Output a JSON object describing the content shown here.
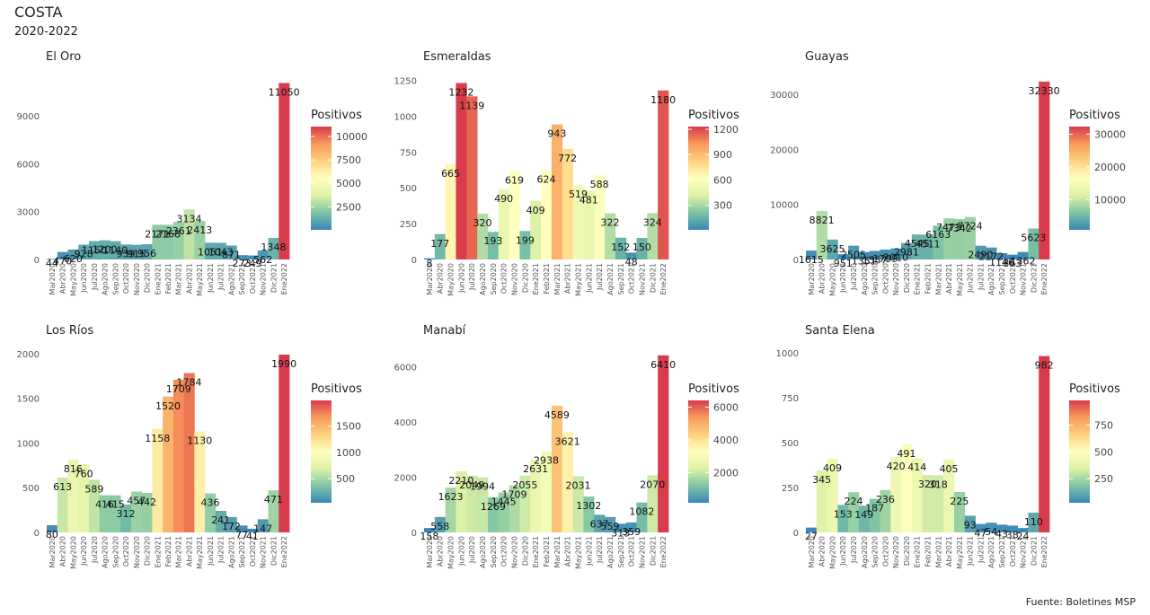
{
  "title": "COSTA",
  "subtitle": "2020-2022",
  "caption": "Fuente: Boletines MSP",
  "legend_title": "Positivos",
  "colorscale": [
    "#3a86b8",
    "#7dc4a4",
    "#dff2a6",
    "#ffffbf",
    "#fdd17f",
    "#f89a5b",
    "#d83b4b"
  ],
  "chart_data": [
    {
      "type": "bar",
      "title": "El Oro",
      "categories": [
        "Mar2020",
        "Abr2020",
        "May2020",
        "Jun2020",
        "Jul2020",
        "Ago2020",
        "Sep2020",
        "Oct2020",
        "Nov2020",
        "Dic2020",
        "Ene2021",
        "Feb2021",
        "Mar2021",
        "Abr2021",
        "May2021",
        "Jun2021",
        "Jul2021",
        "Ago2021",
        "Sep2021",
        "Oct2021",
        "Nov2021",
        "Dic2021",
        "Ene2022"
      ],
      "values": [
        44,
        470,
        620,
        928,
        1150,
        1200,
        1140,
        939,
        915,
        956,
        2171,
        2168,
        2361,
        3134,
        2413,
        1051,
        1043,
        871,
        273,
        249,
        562,
        1348,
        11050
      ],
      "ylim": [
        0,
        11300
      ],
      "yticks": [
        0,
        3000,
        6000,
        9000
      ],
      "legend_ticks": [
        2500,
        5000,
        7500,
        10000
      ]
    },
    {
      "type": "bar",
      "title": "Esmeraldas",
      "categories": [
        "Mar2020",
        "Abr2020",
        "May2020",
        "Jun2020",
        "Jul2020",
        "Ago2020",
        "Sep2020",
        "Oct2020",
        "Nov2020",
        "Dic2020",
        "Ene2021",
        "Feb2021",
        "Mar2021",
        "Abr2021",
        "May2021",
        "Jun2021",
        "Jul2021",
        "Ago2021",
        "Sep2021",
        "Oct2021",
        "Nov2021",
        "Dic2021",
        "Ene2022"
      ],
      "values": [
        8,
        177,
        665,
        1232,
        1139,
        320,
        193,
        490,
        619,
        199,
        409,
        624,
        943,
        772,
        519,
        481,
        588,
        322,
        152,
        48,
        150,
        324,
        1180
      ],
      "ylim": [
        0,
        1260
      ],
      "yticks": [
        0,
        250,
        500,
        750,
        1000,
        1250
      ],
      "legend_ticks": [
        300,
        600,
        900,
        1200
      ]
    },
    {
      "type": "bar",
      "title": "Guayas",
      "categories": [
        "Mar2020",
        "Abr2020",
        "May2020",
        "Jun2020",
        "Jul2020",
        "Ago2020",
        "Sep2020",
        "Oct2020",
        "Nov2020",
        "Dic2020",
        "Ene2021",
        "Feb2021",
        "Mar2021",
        "Abr2021",
        "May2021",
        "Jun2021",
        "Jul2021",
        "Ago2021",
        "Sep2021",
        "Oct2021",
        "Nov2021",
        "Dic2021",
        "Ene2022"
      ],
      "values": [
        1615,
        8821,
        3625,
        951,
        2505,
        1351,
        1557,
        1799,
        2010,
        2981,
        4545,
        4511,
        6163,
        7473,
        7342,
        7724,
        2490,
        2172,
        1146,
        863,
        1362,
        5623,
        32330
      ],
      "ylim": [
        0,
        32800
      ],
      "yticks": [
        0,
        10000,
        20000,
        30000
      ],
      "legend_ticks": [
        10000,
        20000,
        30000
      ]
    },
    {
      "type": "bar",
      "title": "Los Ríos",
      "categories": [
        "Mar2020",
        "Abr2020",
        "May2020",
        "Jun2020",
        "Jul2020",
        "Ago2020",
        "Sep2020",
        "Oct2020",
        "Nov2020",
        "Dic2020",
        "Ene2021",
        "Feb2021",
        "Mar2021",
        "Abr2021",
        "May2021",
        "Jun2021",
        "Jul2021",
        "Ago2021",
        "Sep2021",
        "Oct2021",
        "Nov2021",
        "Dic2021",
        "Ene2022"
      ],
      "values": [
        80,
        613,
        816,
        760,
        589,
        416,
        415,
        312,
        457,
        442,
        1158,
        1520,
        1709,
        1784,
        1130,
        436,
        241,
        172,
        77,
        41,
        147,
        471,
        1990
      ],
      "ylim": [
        0,
        2010
      ],
      "yticks": [
        0,
        500,
        1000,
        1500,
        2000
      ],
      "legend_ticks": [
        500,
        1000,
        1500
      ]
    },
    {
      "type": "bar",
      "title": "Manabí",
      "categories": [
        "Mar2020",
        "Abr2020",
        "May2020",
        "Jun2020",
        "Jul2020",
        "Ago2020",
        "Sep2020",
        "Oct2020",
        "Nov2020",
        "Dic2020",
        "Ene2021",
        "Feb2021",
        "Mar2021",
        "Abr2021",
        "May2021",
        "Jun2021",
        "Jul2021",
        "Ago2021",
        "Sep2021",
        "Oct2021",
        "Nov2021",
        "Dic2021",
        "Ene2022"
      ],
      "values": [
        158,
        558,
        1623,
        2210,
        2049,
        1994,
        1269,
        1445,
        1709,
        2055,
        2631,
        2938,
        4589,
        3621,
        2031,
        1302,
        637,
        559,
        313,
        359,
        1082,
        2070,
        6410
      ],
      "ylim": [
        0,
        6500
      ],
      "yticks": [
        0,
        2000,
        4000,
        6000
      ],
      "legend_ticks": [
        2000,
        4000,
        6000
      ]
    },
    {
      "type": "bar",
      "title": "Santa Elena",
      "categories": [
        "Mar2020",
        "Abr2020",
        "May2020",
        "Jun2020",
        "Jul2020",
        "Ago2020",
        "Sep2020",
        "Oct2020",
        "Nov2020",
        "Dic2020",
        "Ene2021",
        "Feb2021",
        "Mar2021",
        "Abr2021",
        "May2021",
        "Jun2021",
        "Jul2021",
        "Ago2021",
        "Sep2021",
        "Oct2021",
        "Nov2021",
        "Dic2021",
        "Ene2022"
      ],
      "values": [
        27,
        345,
        409,
        153,
        224,
        149,
        187,
        236,
        420,
        491,
        414,
        320,
        318,
        405,
        225,
        93,
        47,
        54,
        43,
        38,
        24,
        110,
        982
      ],
      "ylim": [
        0,
        1000
      ],
      "yticks": [
        0,
        250,
        500,
        750,
        1000
      ],
      "legend_ticks": [
        250,
        500,
        750
      ]
    }
  ]
}
